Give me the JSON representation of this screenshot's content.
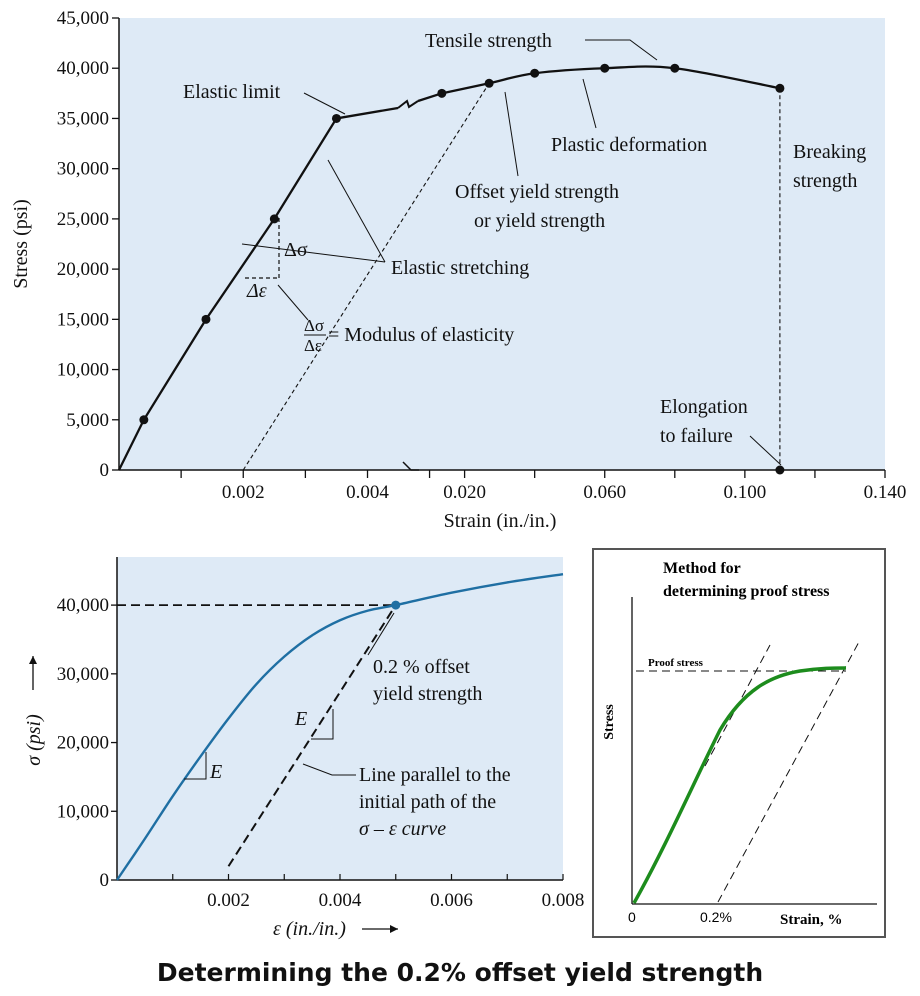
{
  "caption": "Determining the 0.2% offset yield strength",
  "chart_data": [
    {
      "type": "line",
      "title": "",
      "xlabel": "Strain (in./in.)",
      "ylabel": "Stress (psi)",
      "x_ticks": [
        "0.002",
        "0.004",
        "0.020",
        "0.060",
        "0.100",
        "0.140"
      ],
      "y_ticks": [
        "0",
        "5,000",
        "10,000",
        "15,000",
        "20,000",
        "25,000",
        "30,000",
        "35,000",
        "40,000",
        "45,000"
      ],
      "x_segments": [
        {
          "range": [
            0,
            0.0047
          ]
        },
        {
          "range": [
            0.0047,
            0.14
          ]
        }
      ],
      "ylim": [
        0,
        45000
      ],
      "points": [
        {
          "x": 0.0,
          "y": 0
        },
        {
          "x": 0.0004,
          "y": 5000
        },
        {
          "x": 0.0014,
          "y": 15000
        },
        {
          "x": 0.0025,
          "y": 25000
        },
        {
          "x": 0.0035,
          "y": 35000
        },
        {
          "x": 0.0135,
          "y": 37500
        },
        {
          "x": 0.027,
          "y": 38500
        },
        {
          "x": 0.04,
          "y": 39500
        },
        {
          "x": 0.06,
          "y": 40000
        },
        {
          "x": 0.08,
          "y": 40000
        },
        {
          "x": 0.11,
          "y": 38000
        }
      ],
      "failure_point": {
        "x": 0.11,
        "y": 0
      },
      "offset_line": {
        "start_x": 0.002,
        "end": {
          "x": 0.027,
          "y": 38500
        }
      },
      "annotations": {
        "tensile_strength": "Tensile strength",
        "elastic_limit": "Elastic limit",
        "plastic_deformation": "Plastic deformation",
        "breaking_strength_1": "Breaking",
        "breaking_strength_2": "strength",
        "offset_yield_1": "Offset yield strength",
        "offset_yield_2": "or yield strength",
        "elastic_stretching": "Elastic stretching",
        "delta_sigma": "Δσ",
        "delta_epsilon": "Δε",
        "modulus_num": "Δσ",
        "modulus_den": "Δε",
        "modulus_text": "= Modulus of elasticity",
        "elongation_1": "Elongation",
        "elongation_2": "to failure"
      }
    },
    {
      "type": "line",
      "title": "",
      "xlabel": "ε (in./in.)",
      "ylabel": "σ (psi)",
      "x_ticks": [
        "0.002",
        "0.004",
        "0.006",
        "0.008"
      ],
      "y_ticks": [
        "0",
        "10,000",
        "20,000",
        "30,000",
        "40,000"
      ],
      "xlim": [
        0,
        0.008
      ],
      "ylim": [
        0,
        47000
      ],
      "curve": [
        {
          "x": 0.0,
          "y": 0
        },
        {
          "x": 0.0005,
          "y": 6000
        },
        {
          "x": 0.001,
          "y": 12200
        },
        {
          "x": 0.0015,
          "y": 18000
        },
        {
          "x": 0.002,
          "y": 23500
        },
        {
          "x": 0.0025,
          "y": 28500
        },
        {
          "x": 0.003,
          "y": 32500
        },
        {
          "x": 0.0035,
          "y": 35600
        },
        {
          "x": 0.004,
          "y": 37800
        },
        {
          "x": 0.0045,
          "y": 39200
        },
        {
          "x": 0.005,
          "y": 40000
        },
        {
          "x": 0.006,
          "y": 41800
        },
        {
          "x": 0.007,
          "y": 43300
        },
        {
          "x": 0.008,
          "y": 44500
        }
      ],
      "offset_line": {
        "start": {
          "x": 0.002,
          "y": 2000
        },
        "end": {
          "x": 0.005,
          "y": 40000
        }
      },
      "yield_point": {
        "x": 0.005,
        "y": 40000
      },
      "annotations": {
        "offset_label_1": "0.2 % offset",
        "offset_label_2": "yield strength",
        "e_label_1": "E",
        "e_label_2": "E",
        "parallel_1": "Line parallel to the",
        "parallel_2": "initial path of the",
        "parallel_3": "σ – ε curve"
      }
    },
    {
      "type": "line",
      "title": "Method for determining proof stress",
      "title_line1": "Method for",
      "title_line2": "determining proof stress",
      "xlabel": "Strain, %",
      "ylabel": "Stress",
      "x_ticks": [
        "0",
        "0.2%"
      ],
      "proof_stress_label": "Proof stress"
    }
  ]
}
